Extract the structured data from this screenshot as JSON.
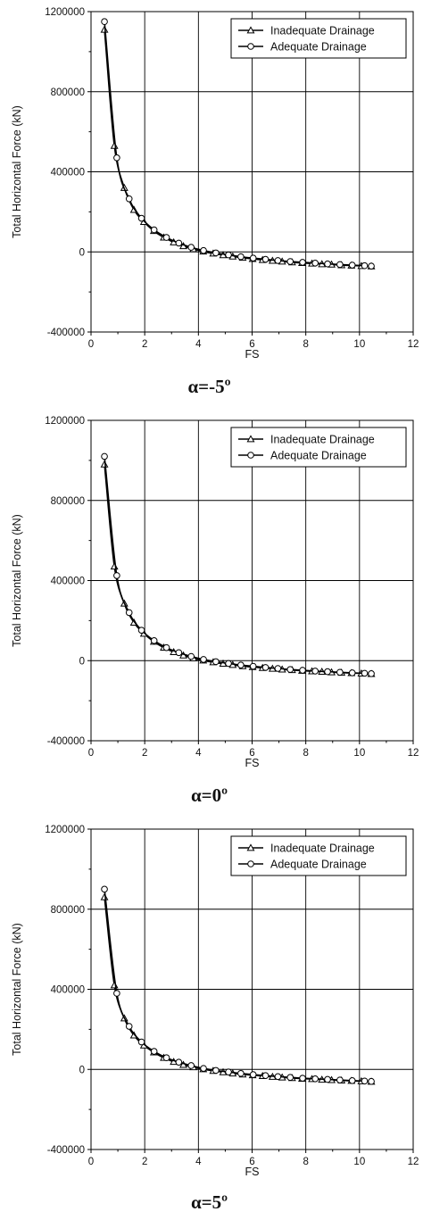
{
  "chart_data": [
    {
      "type": "line",
      "caption": "α=-5º",
      "xlabel": "FS",
      "ylabel": "Total Horizontal Force (kN)",
      "xlim": [
        0,
        12
      ],
      "ylim": [
        -400000,
        1200000
      ],
      "xticks": [
        0,
        2,
        4,
        6,
        8,
        10,
        12
      ],
      "yticks": [
        -400000,
        0,
        400000,
        800000,
        1200000
      ],
      "grid": true,
      "legend_position": "top-right",
      "series": [
        {
          "name": "Inadequate Drainage",
          "marker": "triangle",
          "x": [
            0.5,
            0.87,
            1.24,
            1.6,
            1.97,
            2.34,
            2.71,
            3.08,
            3.44,
            3.81,
            4.18,
            4.55,
            4.92,
            5.28,
            5.65,
            6.02,
            6.39,
            6.76,
            7.12,
            7.49,
            7.86,
            8.23,
            8.6,
            8.96,
            9.33,
            9.7,
            10.07,
            10.44
          ],
          "y": [
            1110000,
            530000,
            320000,
            210000,
            150000,
            105000,
            72000,
            48000,
            29000,
            14000,
            2000,
            -8000,
            -16000,
            -23000,
            -29000,
            -35000,
            -40000,
            -44000,
            -48000,
            -52000,
            -55000,
            -58000,
            -61000,
            -63000,
            -66000,
            -68000,
            -70000,
            -72000
          ]
        },
        {
          "name": "Adequate Drainage",
          "marker": "circle",
          "x": [
            0.5,
            0.96,
            1.42,
            1.88,
            2.35,
            2.81,
            3.27,
            3.73,
            4.19,
            4.65,
            5.12,
            5.58,
            6.04,
            6.5,
            6.96,
            7.42,
            7.88,
            8.35,
            8.81,
            9.27,
            9.73,
            10.19,
            10.44
          ],
          "y": [
            1150000,
            470000,
            265000,
            168000,
            110000,
            72000,
            44000,
            23000,
            7000,
            -5000,
            -15000,
            -24000,
            -31000,
            -37000,
            -43000,
            -48000,
            -52000,
            -56000,
            -60000,
            -63000,
            -66000,
            -69000,
            -71000
          ]
        }
      ]
    },
    {
      "type": "line",
      "caption": "α=0º",
      "xlabel": "FS",
      "ylabel": "Total Horizontal Force (kN)",
      "xlim": [
        0,
        12
      ],
      "ylim": [
        -400000,
        1200000
      ],
      "xticks": [
        0,
        2,
        4,
        6,
        8,
        10,
        12
      ],
      "yticks": [
        -400000,
        0,
        400000,
        800000,
        1200000
      ],
      "grid": true,
      "legend_position": "top-right",
      "series": [
        {
          "name": "Inadequate Drainage",
          "marker": "triangle",
          "x": [
            0.5,
            0.87,
            1.24,
            1.6,
            1.97,
            2.34,
            2.71,
            3.08,
            3.44,
            3.81,
            4.18,
            4.55,
            4.92,
            5.28,
            5.65,
            6.02,
            6.39,
            6.76,
            7.12,
            7.49,
            7.86,
            8.23,
            8.6,
            8.96,
            9.33,
            9.7,
            10.07,
            10.44
          ],
          "y": [
            980000,
            470000,
            285000,
            190000,
            135000,
            95000,
            65000,
            43000,
            26000,
            12000,
            1000,
            -8000,
            -15000,
            -21000,
            -27000,
            -32000,
            -36000,
            -40000,
            -44000,
            -47000,
            -50000,
            -53000,
            -55000,
            -58000,
            -60000,
            -62000,
            -64000,
            -66000
          ]
        },
        {
          "name": "Adequate Drainage",
          "marker": "circle",
          "x": [
            0.5,
            0.96,
            1.42,
            1.88,
            2.35,
            2.81,
            3.27,
            3.73,
            4.19,
            4.65,
            5.12,
            5.58,
            6.04,
            6.5,
            6.96,
            7.42,
            7.88,
            8.35,
            8.81,
            9.27,
            9.73,
            10.19,
            10.44
          ],
          "y": [
            1020000,
            425000,
            240000,
            152000,
            100000,
            65000,
            40000,
            21000,
            6000,
            -5000,
            -14000,
            -22000,
            -28000,
            -34000,
            -39000,
            -44000,
            -48000,
            -52000,
            -55000,
            -58000,
            -61000,
            -63000,
            -65000
          ]
        }
      ]
    },
    {
      "type": "line",
      "caption": "α=5º",
      "xlabel": "FS",
      "ylabel": "Total Horizontal Force (kN)",
      "xlim": [
        0,
        12
      ],
      "ylim": [
        -400000,
        1200000
      ],
      "xticks": [
        0,
        2,
        4,
        6,
        8,
        10,
        12
      ],
      "yticks": [
        -400000,
        0,
        400000,
        800000,
        1200000
      ],
      "grid": true,
      "legend_position": "top-right",
      "series": [
        {
          "name": "Inadequate Drainage",
          "marker": "triangle",
          "x": [
            0.5,
            0.87,
            1.24,
            1.6,
            1.97,
            2.34,
            2.71,
            3.08,
            3.44,
            3.81,
            4.18,
            4.55,
            4.92,
            5.28,
            5.65,
            6.02,
            6.39,
            6.76,
            7.12,
            7.49,
            7.86,
            8.23,
            8.6,
            8.96,
            9.33,
            9.7,
            10.07,
            10.44
          ],
          "y": [
            860000,
            420000,
            255000,
            170000,
            120000,
            85000,
            58000,
            38000,
            23000,
            11000,
            1000,
            -7000,
            -14000,
            -20000,
            -25000,
            -29000,
            -33000,
            -37000,
            -40000,
            -43000,
            -46000,
            -48000,
            -51000,
            -53000,
            -55000,
            -57000,
            -59000,
            -61000
          ]
        },
        {
          "name": "Adequate Drainage",
          "marker": "circle",
          "x": [
            0.5,
            0.96,
            1.42,
            1.88,
            2.35,
            2.81,
            3.27,
            3.73,
            4.19,
            4.65,
            5.12,
            5.58,
            6.04,
            6.5,
            6.96,
            7.42,
            7.88,
            8.35,
            8.81,
            9.27,
            9.73,
            10.19,
            10.44
          ],
          "y": [
            900000,
            380000,
            215000,
            137000,
            90000,
            58000,
            36000,
            19000,
            5000,
            -5000,
            -13000,
            -20000,
            -26000,
            -31000,
            -36000,
            -40000,
            -44000,
            -47000,
            -50000,
            -53000,
            -56000,
            -58000,
            -60000
          ]
        }
      ]
    }
  ]
}
